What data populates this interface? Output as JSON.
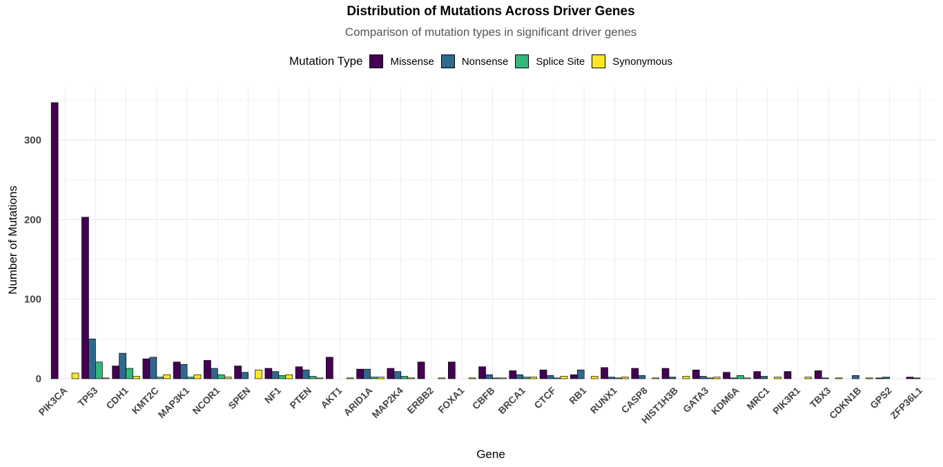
{
  "chart_data": {
    "type": "bar",
    "title": "Distribution of Mutations Across Driver Genes",
    "subtitle": "Comparison of mutation types in significant driver genes",
    "xlabel": "Gene",
    "ylabel": "Number of Mutations",
    "legend_title": "Mutation Type",
    "legend_position": "top",
    "grid": true,
    "ylim": [
      0,
      350
    ],
    "yticks": [
      0,
      100,
      200,
      300
    ],
    "categories": [
      "PIK3CA",
      "TP53",
      "CDH1",
      "KMT2C",
      "MAP3K1",
      "NCOR1",
      "SPEN",
      "NF1",
      "PTEN",
      "AKT1",
      "ARID1A",
      "MAP2K4",
      "ERBB2",
      "FOXA1",
      "CBFB",
      "BRCA1",
      "CTCF",
      "RB1",
      "RUNX1",
      "CASP8",
      "HIST1H3B",
      "GATA3",
      "KDM6A",
      "MRC1",
      "PIK3R1",
      "TBX3",
      "CDKN1B",
      "GPS2",
      "ZFP36L1"
    ],
    "series": [
      {
        "name": "Missense",
        "color": "#440154",
        "values": [
          347,
          203,
          16,
          25,
          21,
          23,
          16,
          13,
          15,
          27,
          12,
          13,
          21,
          21,
          15,
          10,
          11,
          5,
          14,
          13,
          13,
          11,
          8,
          9,
          9,
          10,
          0,
          1,
          2
        ]
      },
      {
        "name": "Nonsense",
        "color": "#31688E",
        "values": [
          0,
          50,
          32,
          27,
          18,
          13,
          8,
          9,
          11,
          0,
          12,
          9,
          0,
          0,
          5,
          5,
          4,
          11,
          2,
          4,
          2,
          3,
          1,
          3,
          0,
          1,
          4,
          2,
          1
        ]
      },
      {
        "name": "Splice Site",
        "color": "#35B779",
        "values": [
          0,
          21,
          13,
          2,
          2,
          5,
          0,
          4,
          3,
          0,
          2,
          3,
          0,
          0,
          1,
          2,
          1,
          0,
          1,
          0,
          0,
          1,
          4,
          0,
          0,
          0,
          0,
          0,
          0
        ]
      },
      {
        "name": "Synonymous",
        "color": "#FDE725",
        "values": [
          7,
          1,
          3,
          5,
          5,
          2,
          11,
          5,
          1,
          1,
          2,
          1,
          1,
          1,
          1,
          2,
          3,
          3,
          2,
          1,
          3,
          2,
          1,
          2,
          2,
          1,
          1,
          0,
          0
        ]
      }
    ]
  }
}
